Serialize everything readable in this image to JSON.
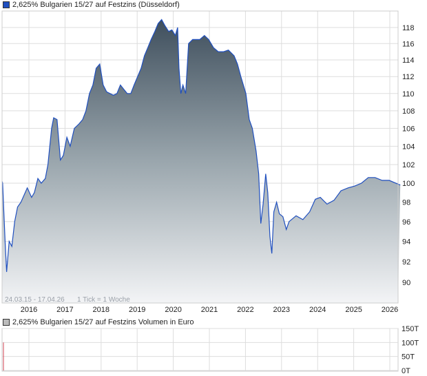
{
  "legend": {
    "price_label": "2,625% Bulgarien 15/27 auf Festzins (Düsseldorf)",
    "price_color": "#1f4fbf",
    "volume_label": "2,625% Bulgarien 15/27 auf Festzins Volumen in Euro",
    "volume_color": "#bbbbbb"
  },
  "info": {
    "range": "24.03.15 - 17.04.26",
    "tick": "1 Tick = 1 Woche"
  },
  "chart_data": [
    {
      "type": "area",
      "title": "2,625% Bulgarien 15/27 auf Festzins (Düsseldorf)",
      "y_scale": "log",
      "ylim": [
        88,
        119.5
      ],
      "xlim": [
        "2015-03-24",
        "2026-04-17"
      ],
      "grid": true,
      "y_ticks": [
        90,
        92,
        94,
        96,
        98,
        100,
        102,
        104,
        106,
        108,
        110,
        112,
        114,
        116,
        118
      ],
      "x_ticks": [
        "2016",
        "2017",
        "2018",
        "2019",
        "2020",
        "2021",
        "2022",
        "2023",
        "2024",
        "2025",
        "2026"
      ],
      "points": [
        [
          "2015-03-24",
          100.2
        ],
        [
          "2015-04-10",
          100
        ],
        [
          "2015-05-05",
          94
        ],
        [
          "2015-05-20",
          91
        ],
        [
          "2015-06-15",
          94
        ],
        [
          "2015-07-12",
          93.5
        ],
        [
          "2015-08-10",
          96
        ],
        [
          "2015-09-08",
          97.5
        ],
        [
          "2015-10-12",
          98
        ],
        [
          "2015-12-15",
          99.5
        ],
        [
          "2016-01-28",
          98.5
        ],
        [
          "2016-02-25",
          99
        ],
        [
          "2016-04-01",
          100.5
        ],
        [
          "2016-05-05",
          100
        ],
        [
          "2016-06-15",
          100.5
        ],
        [
          "2016-07-12",
          102
        ],
        [
          "2016-08-18",
          106
        ],
        [
          "2016-09-08",
          107.2
        ],
        [
          "2016-10-12",
          107
        ],
        [
          "2016-11-15",
          102.5
        ],
        [
          "2016-12-15",
          103
        ],
        [
          "2017-01-20",
          105
        ],
        [
          "2017-02-22",
          104
        ],
        [
          "2017-04-05",
          106
        ],
        [
          "2017-05-22",
          106.5
        ],
        [
          "2017-06-28",
          107
        ],
        [
          "2017-08-01",
          108
        ],
        [
          "2017-09-05",
          110
        ],
        [
          "2017-10-10",
          111
        ],
        [
          "2017-11-12",
          113
        ],
        [
          "2017-12-18",
          113.5
        ],
        [
          "2018-01-22",
          111
        ],
        [
          "2018-02-26",
          110.2
        ],
        [
          "2018-04-01",
          110
        ],
        [
          "2018-05-05",
          109.8
        ],
        [
          "2018-06-10",
          110
        ],
        [
          "2018-07-15",
          111
        ],
        [
          "2018-08-18",
          110.5
        ],
        [
          "2018-09-22",
          110
        ],
        [
          "2018-10-28",
          110
        ],
        [
          "2018-12-01",
          111
        ],
        [
          "2019-01-05",
          112
        ],
        [
          "2019-02-10",
          113
        ],
        [
          "2019-03-15",
          114.5
        ],
        [
          "2019-04-18",
          115.5
        ],
        [
          "2019-05-22",
          116.5
        ],
        [
          "2019-06-28",
          117.5
        ],
        [
          "2019-08-01",
          118.5
        ],
        [
          "2019-09-05",
          119
        ],
        [
          "2019-10-10",
          118.2
        ],
        [
          "2019-11-15",
          117.5
        ],
        [
          "2019-12-18",
          117.7
        ],
        [
          "2020-01-22",
          117
        ],
        [
          "2020-02-14",
          118
        ],
        [
          "2020-02-28",
          113
        ],
        [
          "2020-03-18",
          110
        ],
        [
          "2020-04-08",
          111
        ],
        [
          "2020-05-06",
          110
        ],
        [
          "2020-06-04",
          116
        ],
        [
          "2020-07-15",
          116.5
        ],
        [
          "2020-09-25",
          116.5
        ],
        [
          "2020-11-12",
          117
        ],
        [
          "2020-12-25",
          116.5
        ],
        [
          "2021-02-12",
          115.5
        ],
        [
          "2021-04-01",
          115
        ],
        [
          "2021-05-25",
          115
        ],
        [
          "2021-07-12",
          115.2
        ],
        [
          "2021-09-08",
          114.5
        ],
        [
          "2021-10-12",
          113.5
        ],
        [
          "2021-11-15",
          112
        ],
        [
          "2022-01-05",
          110
        ],
        [
          "2022-02-08",
          107
        ],
        [
          "2022-03-12",
          106
        ],
        [
          "2022-04-18",
          103.5
        ],
        [
          "2022-05-15",
          101
        ],
        [
          "2022-06-05",
          95.8
        ],
        [
          "2022-06-28",
          97.8
        ],
        [
          "2022-07-25",
          101
        ],
        [
          "2022-08-15",
          99
        ],
        [
          "2022-09-05",
          94.5
        ],
        [
          "2022-09-25",
          92.8
        ],
        [
          "2022-10-15",
          97
        ],
        [
          "2022-11-12",
          98
        ],
        [
          "2022-12-10",
          96.8
        ],
        [
          "2023-01-15",
          96.5
        ],
        [
          "2023-02-18",
          95.2
        ],
        [
          "2023-03-18",
          96
        ],
        [
          "2023-05-28",
          96.6
        ],
        [
          "2023-08-05",
          96.2
        ],
        [
          "2023-10-12",
          97
        ],
        [
          "2023-12-08",
          98.3
        ],
        [
          "2024-01-28",
          98.5
        ],
        [
          "2024-04-05",
          97.8
        ],
        [
          "2024-06-15",
          98.2
        ],
        [
          "2024-08-25",
          99.2
        ],
        [
          "2024-11-05",
          99.5
        ],
        [
          "2025-01-12",
          99.7
        ],
        [
          "2025-03-20",
          100
        ],
        [
          "2025-05-28",
          100.6
        ],
        [
          "2025-08-05",
          100.6
        ],
        [
          "2025-10-15",
          100.3
        ],
        [
          "2025-12-25",
          100.3
        ],
        [
          "2026-04-17",
          99.8
        ]
      ]
    },
    {
      "type": "bar",
      "title": "2,625% Bulgarien 15/27 auf Festzins Volumen in Euro",
      "ylim": [
        0,
        150
      ],
      "y_unit": "T",
      "y_ticks": [
        "0T",
        "50T",
        "100T",
        "150T"
      ],
      "points": [
        [
          "2015-03-24",
          100
        ]
      ]
    }
  ]
}
